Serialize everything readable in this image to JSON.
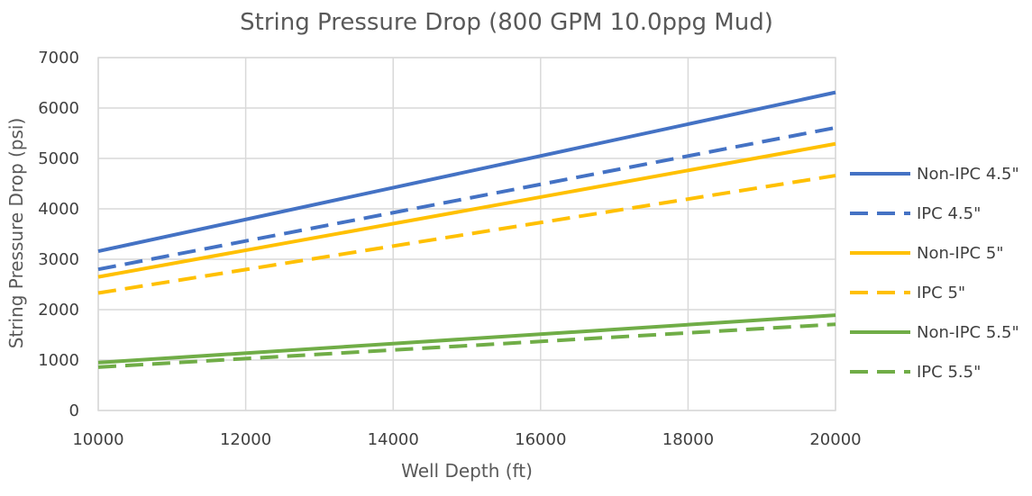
{
  "chart_data": {
    "type": "line",
    "title": "String Pressure Drop (800 GPM 10.0ppg Mud)",
    "xlabel": "Well Depth (ft)",
    "ylabel": "String Pressure Drop (psi)",
    "xlim": [
      10000,
      20000
    ],
    "ylim": [
      0,
      7000
    ],
    "xticks": [
      10000,
      12000,
      14000,
      16000,
      18000,
      20000
    ],
    "yticks": [
      0,
      1000,
      2000,
      3000,
      4000,
      5000,
      6000,
      7000
    ],
    "grid": true,
    "legend_position": "right",
    "series": [
      {
        "name": "Non-IPC 4.5\"",
        "color": "#4472C4",
        "dash": "solid",
        "x": [
          10000,
          20000
        ],
        "y": [
          3160,
          6310
        ]
      },
      {
        "name": "IPC 4.5\"",
        "color": "#4472C4",
        "dash": "dashed",
        "x": [
          10000,
          20000
        ],
        "y": [
          2800,
          5610
        ]
      },
      {
        "name": "Non-IPC 5\"",
        "color": "#FFC000",
        "dash": "solid",
        "x": [
          10000,
          20000
        ],
        "y": [
          2650,
          5290
        ]
      },
      {
        "name": "IPC 5\"",
        "color": "#FFC000",
        "dash": "dashed",
        "x": [
          10000,
          20000
        ],
        "y": [
          2330,
          4660
        ]
      },
      {
        "name": "Non-IPC 5.5\"",
        "color": "#70AD47",
        "dash": "solid",
        "x": [
          10000,
          20000
        ],
        "y": [
          950,
          1890
        ]
      },
      {
        "name": "IPC 5.5\"",
        "color": "#70AD47",
        "dash": "dashed",
        "x": [
          10000,
          20000
        ],
        "y": [
          860,
          1710
        ]
      }
    ]
  }
}
